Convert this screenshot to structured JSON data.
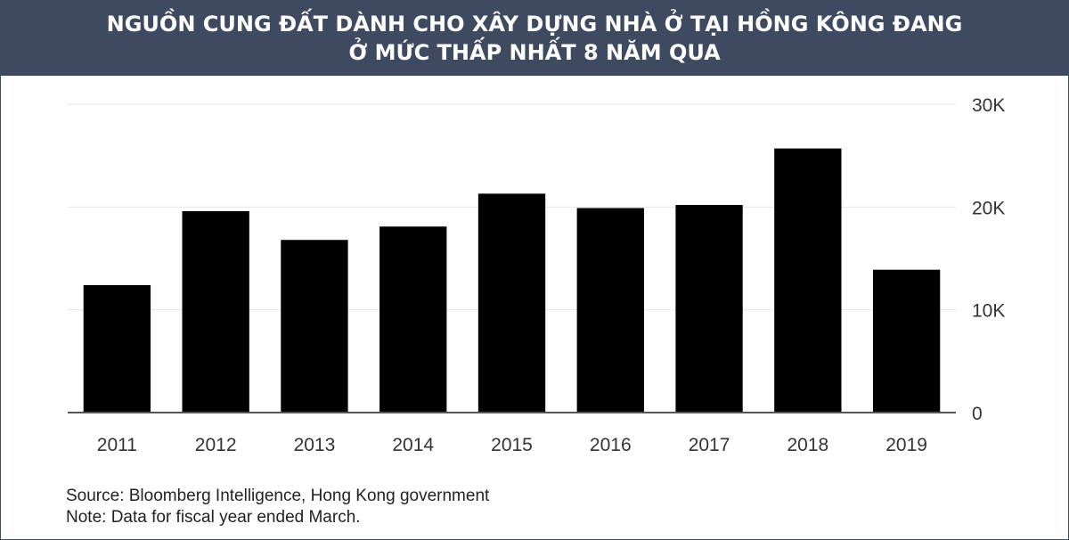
{
  "chart_data": {
    "type": "bar",
    "title_lines": [
      "NGUỒN CUNG ĐẤT DÀNH CHO XÂY DỰNG NHÀ Ở TẠI HỒNG KÔNG ĐANG",
      "Ở MỨC THẤP NHẤT 8 NĂM QUA"
    ],
    "categories": [
      "2011",
      "2012",
      "2013",
      "2014",
      "2015",
      "2016",
      "2017",
      "2018",
      "2019"
    ],
    "values": [
      12400,
      19600,
      16800,
      18100,
      21300,
      19900,
      20200,
      25700,
      13900
    ],
    "ylim": [
      0,
      30000
    ],
    "y_ticks": [
      0,
      10000,
      20000,
      30000
    ],
    "y_tick_labels": [
      "0",
      "10K",
      "20K",
      "30K"
    ],
    "y_axis_position": "right",
    "grid": true,
    "bar_color": "#000000",
    "header_color": "#3e4a60"
  },
  "footer": {
    "source": "Source: Bloomberg Intelligence, Hong Kong government",
    "note": "Note: Data for fiscal year ended March."
  }
}
